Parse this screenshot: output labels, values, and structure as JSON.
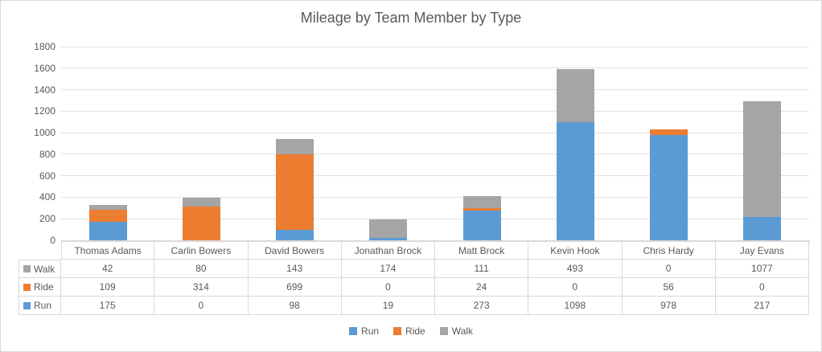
{
  "chart_data": {
    "type": "bar",
    "stacked": true,
    "title": "Mileage by Team Member by Type",
    "categories": [
      "Thomas Adams",
      "Carlin Bowers",
      "David Bowers",
      "Jonathan Brock",
      "Matt Brock",
      "Kevin Hook",
      "Chris Hardy",
      "Jay Evans"
    ],
    "series": [
      {
        "name": "Run",
        "color": "#5B9BD5",
        "values": [
          175,
          0,
          98,
          19,
          273,
          1098,
          978,
          217
        ]
      },
      {
        "name": "Ride",
        "color": "#ED7D31",
        "values": [
          109,
          314,
          699,
          0,
          24,
          0,
          56,
          0
        ]
      },
      {
        "name": "Walk",
        "color": "#A5A5A5",
        "values": [
          42,
          80,
          143,
          174,
          111,
          493,
          0,
          1077
        ]
      }
    ],
    "ylim": [
      0,
      1800
    ],
    "yticks": [
      0,
      200,
      400,
      600,
      800,
      1000,
      1200,
      1400,
      1600,
      1800
    ],
    "grid": true,
    "legend": {
      "position": "bottom",
      "order": [
        "Run",
        "Ride",
        "Walk"
      ]
    },
    "data_table": {
      "shown": true,
      "row_order": [
        "Walk",
        "Ride",
        "Run"
      ]
    }
  }
}
